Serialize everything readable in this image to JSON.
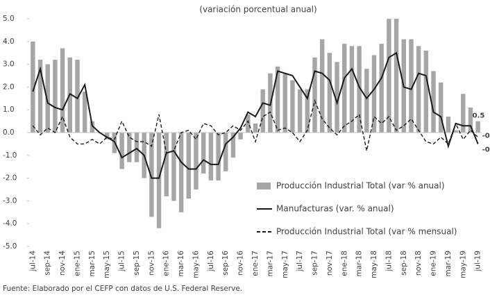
{
  "chart_data": {
    "type": "bar",
    "title": "(variación porcentual anual)",
    "source": "Fuente: Elaborado por el CEFP con datos de U.S. Federal Reserve.",
    "legend": "lower right",
    "categories": [
      "jul-14",
      null,
      "sep-14",
      null,
      "nov-14",
      null,
      "ene-15",
      null,
      "mar-15",
      null,
      "may-15",
      null,
      "jul-15",
      null,
      "sep-15",
      null,
      "nov-15",
      null,
      "ene-16",
      null,
      "mar-16",
      null,
      "may-16",
      null,
      "jul-16",
      null,
      "sep-16",
      null,
      "nov-16",
      null,
      "ene-17",
      null,
      "mar-17",
      null,
      "may-17",
      null,
      "jul-17",
      null,
      "sep-17",
      null,
      "nov-17",
      null,
      "ene-18",
      null,
      "mar-18",
      null,
      "may-18",
      null,
      "jul-18",
      null,
      "sep-18",
      null,
      "nov-18",
      null,
      "ene-19",
      null,
      "mar-19",
      null,
      "may-19",
      null,
      "jul-19"
    ],
    "ylim": [
      -5,
      5
    ],
    "yticks": [
      {
        "value": 5,
        "label": "5.0"
      },
      {
        "value": 4,
        "label": "4.0"
      },
      {
        "value": 3,
        "label": "3.0"
      },
      {
        "value": 2,
        "label": "2.0"
      },
      {
        "value": 1,
        "label": "1.0"
      },
      {
        "value": 0,
        "label": "0.0"
      },
      {
        "value": -1,
        "label": "-1.0"
      },
      {
        "value": -2,
        "label": "-2.0"
      },
      {
        "value": -3,
        "label": "-3.0"
      },
      {
        "value": -4,
        "label": "-4.0"
      },
      {
        "value": -5,
        "label": "-5.0"
      }
    ],
    "series": [
      {
        "name": "Producción Industrial Total (var % anual)",
        "type": "bar",
        "color": "#a6a6a6",
        "values": [
          4.0,
          3.2,
          3.0,
          3.2,
          3.7,
          3.3,
          3.2,
          1.8,
          0.5,
          0.0,
          -0.3,
          -0.9,
          -1.6,
          -1.3,
          -1.3,
          -2.0,
          -3.7,
          -4.2,
          -2.8,
          -3.0,
          -3.5,
          -2.9,
          -2.5,
          -1.8,
          -2.1,
          -2.1,
          -1.7,
          -1.1,
          -0.3,
          0.8,
          0.4,
          1.9,
          2.6,
          2.9,
          2.6,
          2.3,
          1.9,
          1.9,
          3.3,
          4.1,
          3.5,
          3.1,
          3.9,
          3.8,
          3.8,
          2.8,
          3.4,
          3.9,
          5.0,
          5.0,
          4.1,
          4.1,
          3.8,
          3.6,
          2.7,
          2.2,
          0.7,
          0.1,
          1.7,
          1.1,
          0.5
        ]
      },
      {
        "name": "Manufacturas (var. % anual)",
        "type": "line",
        "color": "#1a1a1a",
        "dashed": false,
        "values": [
          1.8,
          2.8,
          1.3,
          1.1,
          1.0,
          1.7,
          1.5,
          2.1,
          0.3,
          0.0,
          -0.2,
          -0.4,
          -1.1,
          -0.9,
          -0.7,
          -1.0,
          -2.0,
          -2.0,
          -0.9,
          -0.8,
          -1.3,
          -1.6,
          -1.6,
          -1.2,
          -1.4,
          -1.4,
          -0.5,
          -0.2,
          0.2,
          0.9,
          0.7,
          1.3,
          1.2,
          2.7,
          2.6,
          2.5,
          2.0,
          1.5,
          2.7,
          2.6,
          2.3,
          1.3,
          2.4,
          2.8,
          2.0,
          1.5,
          1.9,
          2.4,
          3.3,
          3.5,
          2.0,
          1.9,
          2.6,
          2.5,
          0.9,
          0.7,
          -0.6,
          0.4,
          0.3,
          0.3,
          -0.5
        ]
      },
      {
        "name": "Producción Industrial Total (var % mensual)",
        "type": "line",
        "color": "#1a1a1a",
        "dashed": true,
        "values": [
          0.3,
          -0.1,
          0.2,
          0.0,
          0.7,
          -0.2,
          -0.5,
          -0.5,
          -0.3,
          -0.5,
          -0.2,
          -0.3,
          0.5,
          -0.2,
          -0.4,
          -0.4,
          -0.6,
          0.8,
          -0.9,
          -0.8,
          0.0,
          0.1,
          -0.3,
          0.4,
          0.3,
          -0.1,
          0.0,
          0.3,
          0.1,
          0.5,
          -0.4,
          0.7,
          0.9,
          0.1,
          0.2,
          0.0,
          -0.4,
          0.1,
          1.4,
          0.6,
          0.2,
          -0.1,
          0.3,
          0.5,
          0.8,
          -0.8,
          0.7,
          0.4,
          0.7,
          0.1,
          0.3,
          0.6,
          0.1,
          -0.4,
          -0.5,
          -0.2,
          -0.5,
          0.4,
          -0.3,
          0.1,
          -0.2
        ]
      }
    ]
  }
}
